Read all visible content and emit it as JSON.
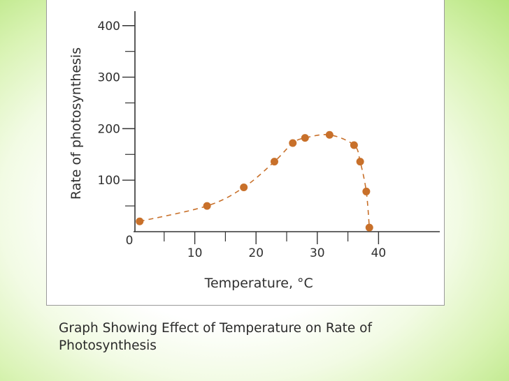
{
  "caption": "Graph Showing Effect of Temperature on Rate of Photosynthesis",
  "chart_data": {
    "type": "line",
    "title": "",
    "xlabel": "Temperature, °C",
    "ylabel": "Rate of photosynthesis",
    "xlim": [
      0,
      50
    ],
    "ylim": [
      0,
      420
    ],
    "x_ticks": [
      0,
      10,
      20,
      30,
      40
    ],
    "x_tick_labels": [
      "0",
      "10",
      "20",
      "30",
      "40"
    ],
    "x_minor_ticks": [
      5,
      15,
      25,
      35
    ],
    "y_ticks": [
      100,
      200,
      300,
      400
    ],
    "y_tick_labels": [
      "100",
      "200",
      "300",
      "400"
    ],
    "y_minor_ticks": [
      50,
      150,
      250,
      350
    ],
    "grid": false,
    "legend": "none",
    "series": [
      {
        "style": "dashed line with dot markers",
        "x": [
          1,
          12,
          18,
          23,
          26,
          28,
          32,
          36,
          37,
          38,
          38.5
        ],
        "y": [
          20,
          50,
          86,
          136,
          172,
          182,
          188,
          168,
          136,
          78,
          8
        ]
      }
    ],
    "colors": {
      "marker": "#c8702a",
      "line": "#c8702a",
      "axis": "#333333",
      "text": "#2f2f2f"
    }
  }
}
